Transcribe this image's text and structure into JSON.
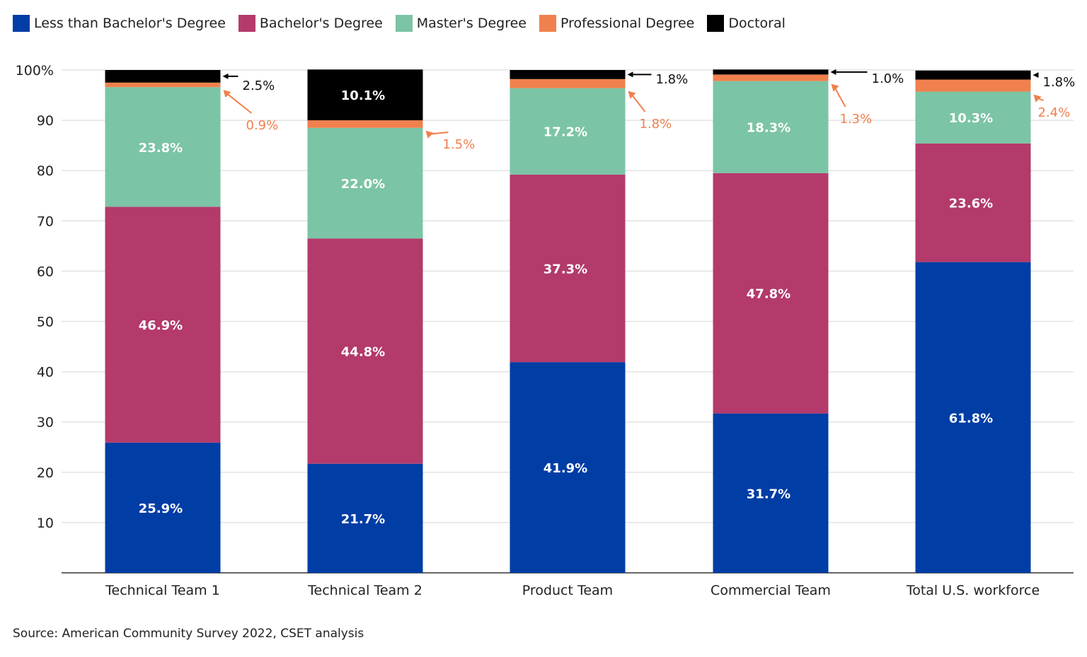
{
  "chart_data": {
    "type": "bar",
    "stacked": true,
    "categories": [
      "Technical Team 1",
      "Technical Team 2",
      "Product Team",
      "Commercial Team",
      "Total U.S. workforce"
    ],
    "series": [
      {
        "name": "Less than Bachelor's Degree",
        "color": "#003da5",
        "values": [
          25.9,
          21.7,
          41.9,
          31.7,
          61.8
        ],
        "labels": [
          "25.9%",
          "21.7%",
          "41.9%",
          "31.7%",
          "61.8%"
        ]
      },
      {
        "name": "Bachelor's Degree",
        "color": "#b33a6b",
        "values": [
          46.9,
          44.8,
          37.3,
          47.8,
          23.6
        ],
        "labels": [
          "46.9%",
          "44.8%",
          "37.3%",
          "47.8%",
          "23.6%"
        ]
      },
      {
        "name": "Master's Degree",
        "color": "#7bc4a5",
        "values": [
          23.8,
          22.0,
          17.2,
          18.3,
          10.3
        ],
        "labels": [
          "23.8%",
          "22.0%",
          "17.2%",
          "18.3%",
          "10.3%"
        ]
      },
      {
        "name": "Professional Degree",
        "color": "#f0804d",
        "values": [
          0.9,
          1.5,
          1.8,
          1.3,
          2.4
        ],
        "labels": [
          "0.9%",
          "1.5%",
          "1.8%",
          "1.3%",
          "2.4%"
        ]
      },
      {
        "name": "Doctoral",
        "color": "#000000",
        "values": [
          2.5,
          10.1,
          1.8,
          1.0,
          1.8
        ],
        "labels": [
          "2.5%",
          "10.1%",
          "1.8%",
          "1.0%",
          "1.8%"
        ]
      }
    ],
    "ylim": [
      0,
      100
    ],
    "yticks": [
      "10",
      "20",
      "30",
      "40",
      "50",
      "60",
      "70",
      "80",
      "90",
      "100%"
    ],
    "grid": true,
    "legend": "top-left"
  },
  "source": "Source: American Community Survey 2022, CSET analysis"
}
